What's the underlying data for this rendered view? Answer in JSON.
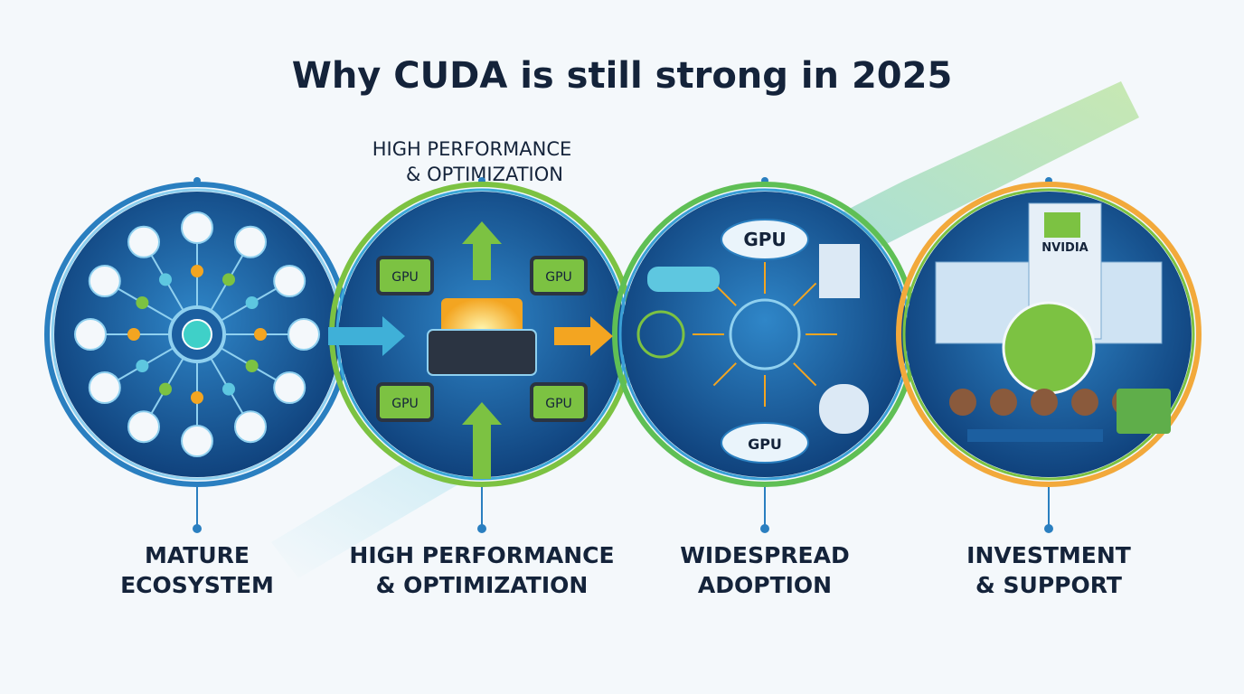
{
  "title": "Why CUDA is still strong in 2025",
  "caption": {
    "lines": [
      "HIGH PERFORMANCE",
      "& OPTIMIZATION"
    ]
  },
  "panels": [
    {
      "label": [
        "MATURE",
        "ECOSYSTEM"
      ]
    },
    {
      "label": [
        "HIGH PERFORMANCE",
        "& OPTIMIZATION"
      ],
      "chips": [
        "GPU",
        "GPU",
        "GPU",
        "GPU"
      ]
    },
    {
      "label": [
        "WIDESPREAD",
        "ADOPTION"
      ],
      "clouds": [
        "GPU",
        "GPU"
      ]
    },
    {
      "label": [
        "INVESTMENT",
        "& SUPPORT"
      ],
      "sign": "NVIDIA"
    }
  ]
}
